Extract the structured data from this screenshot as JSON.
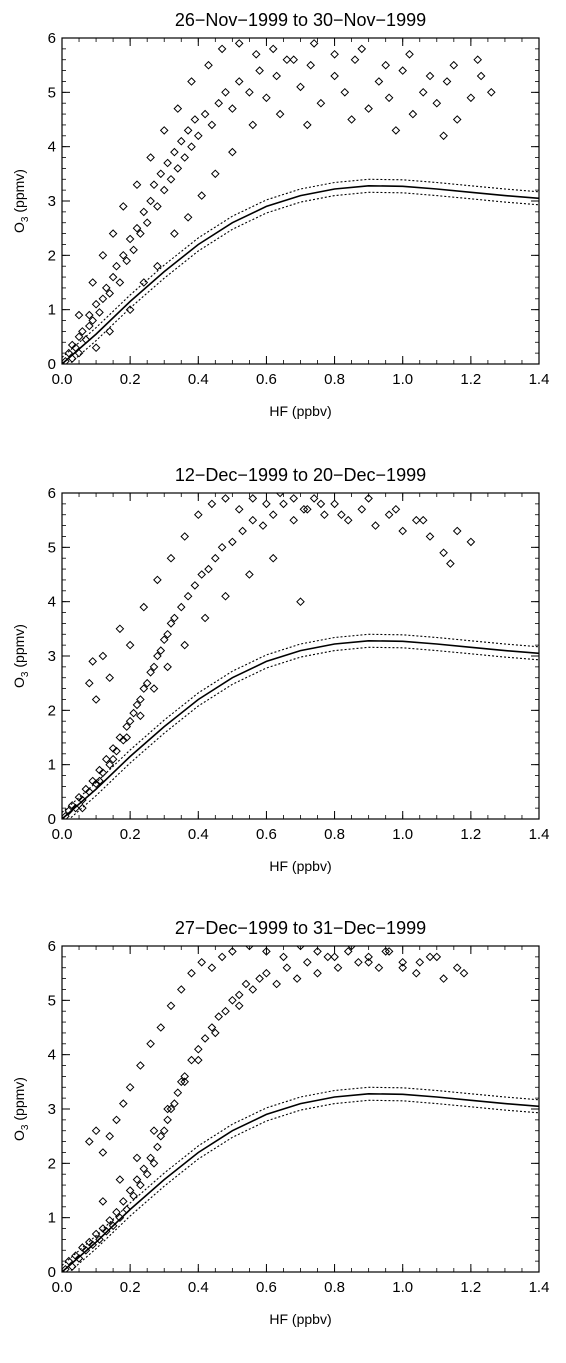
{
  "chart_data": [
    {
      "type": "scatter",
      "title": "26−Nov−1999 to 30−Nov−1999",
      "xlabel": "HF (ppbv)",
      "ylabel": "O3 (ppmv)",
      "xlim": [
        0,
        1.4
      ],
      "ylim": [
        0,
        6
      ],
      "xticks": [
        "0.0",
        "0.2",
        "0.4",
        "0.6",
        "0.8",
        "1.0",
        "1.2",
        "1.4"
      ],
      "yticks": [
        "0",
        "1",
        "2",
        "3",
        "4",
        "5",
        "6"
      ],
      "series": [
        {
          "marker": "diamond",
          "x": [
            0.01,
            0.02,
            0.03,
            0.03,
            0.04,
            0.05,
            0.05,
            0.06,
            0.07,
            0.08,
            0.08,
            0.09,
            0.1,
            0.11,
            0.12,
            0.13,
            0.14,
            0.15,
            0.16,
            0.17,
            0.18,
            0.19,
            0.2,
            0.21,
            0.22,
            0.23,
            0.24,
            0.25,
            0.26,
            0.27,
            0.28,
            0.29,
            0.3,
            0.31,
            0.32,
            0.33,
            0.34,
            0.35,
            0.36,
            0.37,
            0.38,
            0.39,
            0.4,
            0.42,
            0.44,
            0.46,
            0.48,
            0.5,
            0.52,
            0.55,
            0.58,
            0.6,
            0.63,
            0.66,
            0.7,
            0.73,
            0.76,
            0.8,
            0.83,
            0.86,
            0.9,
            0.93,
            0.96,
            1.0,
            1.03,
            1.06,
            1.1,
            1.13,
            1.16,
            1.2,
            1.23,
            1.26,
            0.05,
            0.09,
            0.12,
            0.15,
            0.18,
            0.22,
            0.26,
            0.3,
            0.34,
            0.38,
            0.43,
            0.47,
            0.52,
            0.57,
            0.62,
            0.68,
            0.74,
            0.8,
            0.88,
            0.95,
            1.02,
            1.08,
            1.15,
            1.22,
            0.1,
            0.14,
            0.2,
            0.24,
            0.28,
            0.33,
            0.37,
            0.41,
            0.45,
            0.5,
            0.56,
            0.64,
            0.72,
            0.85,
            0.98,
            1.12
          ],
          "y": [
            0.05,
            0.2,
            0.1,
            0.35,
            0.3,
            0.5,
            0.2,
            0.6,
            0.45,
            0.7,
            0.9,
            0.8,
            1.1,
            0.95,
            1.2,
            1.4,
            1.3,
            1.6,
            1.8,
            1.5,
            2.0,
            1.9,
            2.3,
            2.1,
            2.5,
            2.4,
            2.8,
            2.6,
            3.0,
            3.3,
            2.9,
            3.5,
            3.2,
            3.7,
            3.4,
            3.9,
            3.6,
            4.1,
            3.8,
            4.3,
            4.0,
            4.5,
            4.2,
            4.6,
            4.4,
            4.8,
            5.0,
            4.7,
            5.2,
            5.0,
            5.4,
            4.9,
            5.3,
            5.6,
            5.1,
            5.5,
            4.8,
            5.3,
            5.0,
            5.6,
            4.7,
            5.2,
            4.9,
            5.4,
            4.6,
            5.0,
            4.8,
            5.2,
            4.5,
            4.9,
            5.3,
            5.0,
            0.9,
            1.5,
            2.0,
            2.4,
            2.9,
            3.3,
            3.8,
            4.3,
            4.7,
            5.2,
            5.5,
            5.8,
            5.9,
            5.7,
            5.8,
            5.6,
            5.9,
            5.7,
            5.8,
            5.5,
            5.7,
            5.3,
            5.5,
            5.6,
            0.3,
            0.6,
            1.0,
            1.5,
            1.8,
            2.4,
            2.7,
            3.1,
            3.5,
            3.9,
            4.4,
            4.6,
            4.4,
            4.5,
            4.3,
            4.2
          ]
        }
      ],
      "reference_curve": {
        "x": [
          0.0,
          0.1,
          0.2,
          0.3,
          0.4,
          0.5,
          0.6,
          0.7,
          0.8,
          0.9,
          1.0,
          1.1,
          1.2,
          1.3,
          1.4
        ],
        "y": [
          0.0,
          0.55,
          1.15,
          1.7,
          2.2,
          2.6,
          2.9,
          3.1,
          3.22,
          3.28,
          3.27,
          3.22,
          3.16,
          3.1,
          3.05
        ],
        "band": 0.12
      }
    },
    {
      "type": "scatter",
      "title": "12−Dec−1999 to 20−Dec−1999",
      "xlabel": "HF (ppbv)",
      "ylabel": "O3 (ppmv)",
      "xlim": [
        0,
        1.4
      ],
      "ylim": [
        0,
        6
      ],
      "xticks": [
        "0.0",
        "0.2",
        "0.4",
        "0.6",
        "0.8",
        "1.0",
        "1.2",
        "1.4"
      ],
      "yticks": [
        "0",
        "1",
        "2",
        "3",
        "4",
        "5",
        "6"
      ],
      "series": [
        {
          "marker": "diamond",
          "x": [
            0.01,
            0.02,
            0.03,
            0.04,
            0.05,
            0.06,
            0.07,
            0.08,
            0.09,
            0.1,
            0.11,
            0.12,
            0.13,
            0.14,
            0.15,
            0.16,
            0.17,
            0.18,
            0.19,
            0.2,
            0.21,
            0.22,
            0.23,
            0.24,
            0.25,
            0.26,
            0.27,
            0.28,
            0.29,
            0.3,
            0.31,
            0.32,
            0.33,
            0.35,
            0.37,
            0.39,
            0.41,
            0.43,
            0.45,
            0.47,
            0.5,
            0.53,
            0.56,
            0.59,
            0.62,
            0.65,
            0.68,
            0.71,
            0.74,
            0.77,
            0.8,
            0.84,
            0.88,
            0.92,
            0.96,
            1.0,
            1.04,
            1.08,
            1.12,
            1.16,
            1.2,
            0.08,
            0.09,
            0.1,
            0.12,
            0.14,
            0.17,
            0.2,
            0.24,
            0.28,
            0.32,
            0.36,
            0.4,
            0.44,
            0.48,
            0.52,
            0.56,
            0.6,
            0.64,
            0.68,
            0.72,
            0.76,
            0.82,
            0.9,
            0.98,
            1.06,
            1.14,
            0.06,
            0.11,
            0.15,
            0.19,
            0.23,
            0.27,
            0.31,
            0.36,
            0.42,
            0.48,
            0.55,
            0.62,
            0.7
          ],
          "y": [
            0.05,
            0.15,
            0.25,
            0.2,
            0.4,
            0.35,
            0.55,
            0.5,
            0.7,
            0.65,
            0.9,
            0.85,
            1.1,
            1.0,
            1.3,
            1.25,
            1.5,
            1.45,
            1.7,
            1.8,
            1.95,
            2.1,
            2.2,
            2.4,
            2.5,
            2.7,
            2.8,
            3.0,
            3.1,
            3.3,
            3.4,
            3.6,
            3.7,
            3.9,
            4.1,
            4.3,
            4.5,
            4.6,
            4.8,
            5.0,
            5.1,
            5.3,
            5.5,
            5.4,
            5.6,
            5.8,
            5.5,
            5.7,
            5.9,
            5.6,
            5.8,
            5.5,
            5.7,
            5.4,
            5.6,
            5.3,
            5.5,
            5.2,
            4.9,
            5.3,
            5.1,
            2.5,
            2.9,
            2.2,
            3.0,
            2.6,
            3.5,
            3.2,
            3.9,
            4.4,
            4.8,
            5.2,
            5.6,
            5.8,
            5.9,
            5.7,
            5.9,
            5.8,
            6.0,
            5.9,
            5.7,
            5.8,
            5.6,
            5.9,
            5.7,
            5.5,
            4.7,
            0.2,
            0.7,
            1.1,
            1.5,
            1.9,
            2.4,
            2.8,
            3.2,
            3.7,
            4.1,
            4.5,
            4.8,
            4.0
          ]
        }
      ],
      "reference_curve": {
        "x": [
          0.0,
          0.1,
          0.2,
          0.3,
          0.4,
          0.5,
          0.6,
          0.7,
          0.8,
          0.9,
          1.0,
          1.1,
          1.2,
          1.3,
          1.4
        ],
        "y": [
          0.0,
          0.55,
          1.15,
          1.7,
          2.2,
          2.6,
          2.9,
          3.1,
          3.22,
          3.28,
          3.27,
          3.22,
          3.16,
          3.1,
          3.05
        ],
        "band": 0.12
      }
    },
    {
      "type": "scatter",
      "title": "27−Dec−1999 to 31−Dec−1999",
      "xlabel": "HF (ppbv)",
      "ylabel": "O3 (ppmv)",
      "xlim": [
        0,
        1.4
      ],
      "ylim": [
        0,
        6
      ],
      "xticks": [
        "0.0",
        "0.2",
        "0.4",
        "0.6",
        "0.8",
        "1.0",
        "1.2",
        "1.4"
      ],
      "yticks": [
        "0",
        "1",
        "2",
        "3",
        "4",
        "5",
        "6"
      ],
      "series": [
        {
          "marker": "diamond",
          "x": [
            0.01,
            0.02,
            0.03,
            0.04,
            0.05,
            0.06,
            0.07,
            0.08,
            0.09,
            0.1,
            0.11,
            0.12,
            0.13,
            0.14,
            0.15,
            0.16,
            0.17,
            0.18,
            0.19,
            0.2,
            0.21,
            0.22,
            0.23,
            0.24,
            0.25,
            0.26,
            0.27,
            0.28,
            0.29,
            0.3,
            0.31,
            0.32,
            0.33,
            0.34,
            0.35,
            0.36,
            0.38,
            0.4,
            0.42,
            0.44,
            0.46,
            0.48,
            0.5,
            0.52,
            0.54,
            0.56,
            0.58,
            0.6,
            0.63,
            0.66,
            0.69,
            0.72,
            0.75,
            0.78,
            0.81,
            0.84,
            0.87,
            0.9,
            0.93,
            0.96,
            1.0,
            1.04,
            1.08,
            1.12,
            1.16,
            1.18,
            0.08,
            0.1,
            0.12,
            0.14,
            0.16,
            0.18,
            0.2,
            0.23,
            0.26,
            0.29,
            0.32,
            0.35,
            0.38,
            0.41,
            0.44,
            0.47,
            0.5,
            0.55,
            0.6,
            0.65,
            0.7,
            0.75,
            0.8,
            0.85,
            0.9,
            0.95,
            1.0,
            1.05,
            1.1,
            0.12,
            0.17,
            0.22,
            0.27,
            0.31,
            0.36,
            0.4,
            0.45,
            0.52
          ],
          "y": [
            0.05,
            0.2,
            0.1,
            0.3,
            0.25,
            0.45,
            0.4,
            0.55,
            0.5,
            0.7,
            0.6,
            0.8,
            0.75,
            0.95,
            0.85,
            1.1,
            1.0,
            1.3,
            1.15,
            1.5,
            1.4,
            1.7,
            1.6,
            1.9,
            1.8,
            2.1,
            2.0,
            2.3,
            2.5,
            2.6,
            2.8,
            3.0,
            3.1,
            3.3,
            3.5,
            3.6,
            3.9,
            4.1,
            4.3,
            4.5,
            4.7,
            4.8,
            5.0,
            5.1,
            5.3,
            5.2,
            5.4,
            5.5,
            5.3,
            5.6,
            5.4,
            5.7,
            5.5,
            5.8,
            5.6,
            5.9,
            5.7,
            5.8,
            5.6,
            5.9,
            5.7,
            5.5,
            5.8,
            5.4,
            5.6,
            5.5,
            2.4,
            2.6,
            2.2,
            2.5,
            2.8,
            3.1,
            3.4,
            3.8,
            4.2,
            4.5,
            4.9,
            5.2,
            5.5,
            5.7,
            5.6,
            5.8,
            5.9,
            6.0,
            5.9,
            5.8,
            6.0,
            5.9,
            5.8,
            6.0,
            5.7,
            5.9,
            5.6,
            5.7,
            5.8,
            1.3,
            1.7,
            2.1,
            2.6,
            3.0,
            3.5,
            3.9,
            4.4,
            4.9
          ]
        }
      ],
      "reference_curve": {
        "x": [
          0.0,
          0.1,
          0.2,
          0.3,
          0.4,
          0.5,
          0.6,
          0.7,
          0.8,
          0.9,
          1.0,
          1.1,
          1.2,
          1.3,
          1.4
        ],
        "y": [
          0.0,
          0.55,
          1.15,
          1.7,
          2.2,
          2.6,
          2.9,
          3.1,
          3.22,
          3.28,
          3.27,
          3.22,
          3.16,
          3.1,
          3.05
        ],
        "band": 0.12
      }
    }
  ]
}
